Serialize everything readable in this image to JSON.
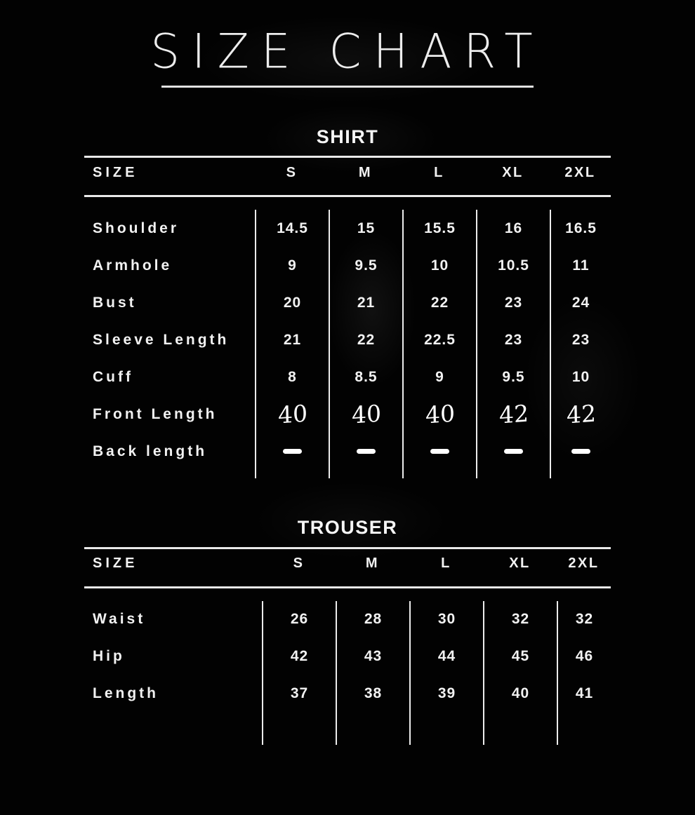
{
  "title": {
    "text": "SIZE CHART"
  },
  "colors": {
    "background": "#000000",
    "text": "#f2f2f2",
    "rule": "#e9e9e9",
    "divider": "#ececec",
    "handwritten_values": "#ffffff"
  },
  "chart_data": [
    {
      "type": "table",
      "title": "SHIRT",
      "columns": [
        "SIZE",
        "S",
        "M",
        "L",
        "XL",
        "2XL"
      ],
      "rows": [
        {
          "label": "Shoulder",
          "style": "normal",
          "values": [
            "14.5",
            "15",
            "15.5",
            "16",
            "16.5"
          ]
        },
        {
          "label": "Armhole",
          "style": "normal",
          "values": [
            "9",
            "9.5",
            "10",
            "10.5",
            "11"
          ]
        },
        {
          "label": "Bust",
          "style": "normal",
          "values": [
            "20",
            "21",
            "22",
            "23",
            "24"
          ]
        },
        {
          "label": "Sleeve Length",
          "style": "normal",
          "values": [
            "21",
            "22",
            "22.5",
            "23",
            "23"
          ]
        },
        {
          "label": "Cuff",
          "style": "normal",
          "values": [
            "8",
            "8.5",
            "9",
            "9.5",
            "10"
          ]
        },
        {
          "label": "Front Length",
          "style": "handwritten",
          "values": [
            "40",
            "40",
            "40",
            "42",
            "42"
          ]
        },
        {
          "label": "Back length",
          "style": "dash",
          "values": [
            "—",
            "—",
            "—",
            "—",
            "—"
          ]
        }
      ]
    },
    {
      "type": "table",
      "title": "TROUSER",
      "columns": [
        "SIZE",
        "S",
        "M",
        "L",
        "XL",
        "2XL"
      ],
      "rows": [
        {
          "label": "Waist",
          "style": "normal",
          "values": [
            "26",
            "28",
            "30",
            "32",
            "32"
          ]
        },
        {
          "label": "Hip",
          "style": "normal",
          "values": [
            "42",
            "43",
            "44",
            "45",
            "46"
          ]
        },
        {
          "label": "Length",
          "style": "normal",
          "values": [
            "37",
            "38",
            "39",
            "40",
            "41"
          ]
        }
      ]
    }
  ]
}
